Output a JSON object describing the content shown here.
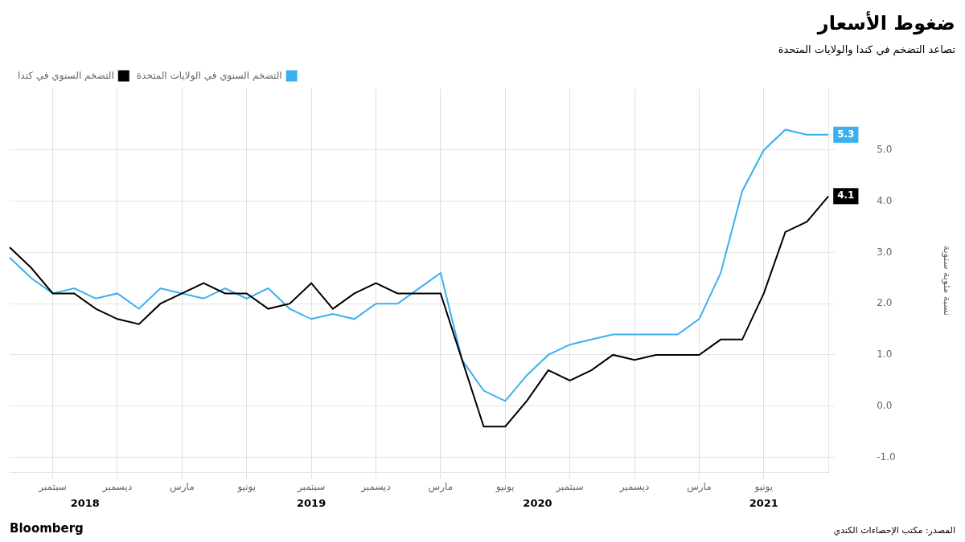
{
  "chart_data": {
    "type": "line",
    "title": "ضغوط الأسعار",
    "subtitle": "تصاعد التضخم في كندا والولايات المتحدة",
    "y_label": "نسبة مئوية سنوية",
    "credit": "Bloomberg",
    "source": "المصدر: مكتب الإحصاءات الكندي",
    "categories": [
      null,
      null,
      "سبتمبر",
      null,
      null,
      "ديسمبر",
      null,
      null,
      "مارس",
      null,
      null,
      "يونيو",
      null,
      null,
      "سبتمبر",
      null,
      null,
      "ديسمبر",
      null,
      null,
      "مارس",
      null,
      null,
      "يونيو",
      null,
      null,
      "سبتمبر",
      null,
      null,
      "ديسمبر",
      null,
      null,
      "مارس",
      null,
      null,
      "يونيو",
      null,
      null,
      null
    ],
    "series": [
      {
        "name": "التضخم السنوي في كندا",
        "color": "#000000",
        "values": [
          3.1,
          2.7,
          2.2,
          2.2,
          1.9,
          1.7,
          1.6,
          2.0,
          2.2,
          2.4,
          2.2,
          2.2,
          1.9,
          2.0,
          2.4,
          1.9,
          2.2,
          2.4,
          2.2,
          2.2,
          2.2,
          0.9,
          -0.4,
          -0.4,
          0.1,
          0.7,
          0.5,
          0.7,
          1.0,
          0.9,
          1.0,
          1.0,
          1.0,
          1.3,
          1.3,
          2.2,
          3.4,
          3.6,
          4.1
        ]
      },
      {
        "name": "التضخم السنوي في الولايات المتحدة",
        "color": "#3ab0f0",
        "values": [
          2.9,
          2.5,
          2.2,
          2.3,
          2.1,
          2.2,
          1.9,
          2.3,
          2.2,
          2.1,
          2.3,
          2.1,
          2.3,
          1.9,
          1.7,
          1.8,
          1.7,
          2.0,
          2.0,
          2.3,
          2.6,
          0.9,
          0.3,
          0.1,
          0.6,
          1.0,
          1.2,
          1.3,
          1.4,
          1.4,
          1.4,
          1.4,
          1.7,
          2.6,
          4.2,
          5.0,
          5.4,
          5.3,
          5.3
        ]
      }
    ],
    "ylim": [
      -1.3,
      6.2
    ],
    "yticks": [
      {
        "value": -1,
        "label": "-1.0"
      },
      {
        "value": 0,
        "label": "0.0"
      },
      {
        "value": 1,
        "label": "1.0"
      },
      {
        "value": 2,
        "label": "2.0"
      },
      {
        "value": 3,
        "label": "3.0"
      },
      {
        "value": 4,
        "label": "4.0"
      },
      {
        "value": 5,
        "label": "5.0"
      }
    ],
    "grid": true,
    "legend": "top",
    "annotations": [
      {
        "text": "2018",
        "x": 3.5
      },
      {
        "text": "2019",
        "x": 14
      },
      {
        "text": "2020",
        "x": 24.5
      },
      {
        "text": "2021",
        "x": 35
      },
      {
        "text": "5.3",
        "x": 38,
        "y": 5.3,
        "color": "#3ab0f0"
      },
      {
        "text": "4.1",
        "x": 38,
        "y": 4.1,
        "color": "#000000"
      }
    ]
  }
}
